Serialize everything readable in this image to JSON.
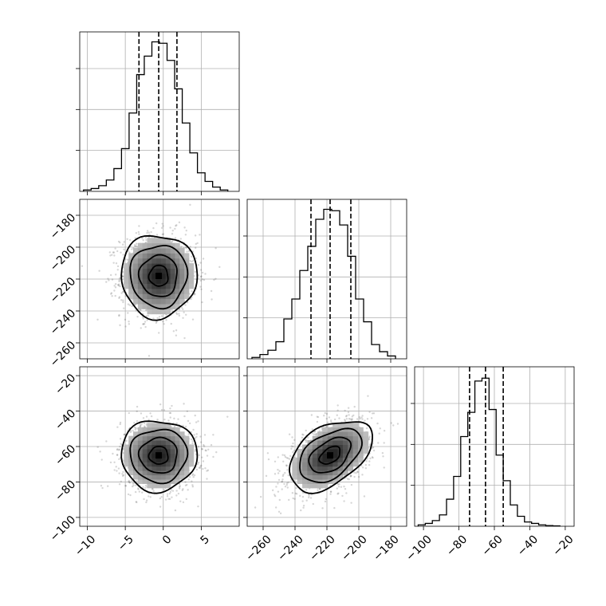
{
  "chart_data": {
    "type": "corner",
    "grid": true,
    "parameters": [
      {
        "range": [
          -11,
          10
        ],
        "ticks": [
          -10,
          -5,
          0,
          5
        ],
        "tick_labels": [
          "−10",
          "−5",
          "0",
          "5"
        ],
        "quantiles": [
          -3.2,
          -0.6,
          1.8
        ],
        "hist_bins": [
          -10.5,
          -9.5,
          -8.5,
          -7.5,
          -6.5,
          -5.5,
          -4.5,
          -3.5,
          -2.5,
          -1.5,
          -0.5,
          0.5,
          1.5,
          2.5,
          3.5,
          4.5,
          5.5,
          6.5,
          7.5,
          8.5
        ],
        "hist_density": [
          0.01,
          0.02,
          0.04,
          0.08,
          0.16,
          0.3,
          0.55,
          0.82,
          0.95,
          1.05,
          1.04,
          0.92,
          0.72,
          0.48,
          0.27,
          0.13,
          0.07,
          0.03,
          0.01
        ]
      },
      {
        "range": [
          -270,
          -170
        ],
        "ticks": [
          -260,
          -240,
          -220,
          -200,
          -180
        ],
        "tick_labels": [
          "−260",
          "−240",
          "−220",
          "−200",
          "−180"
        ],
        "quantiles": [
          -230,
          -218,
          -205
        ],
        "hist_bins": [
          -267,
          -262,
          -257,
          -252,
          -247,
          -242,
          -237,
          -232,
          -227,
          -222,
          -217,
          -212,
          -207,
          -202,
          -197,
          -192,
          -187,
          -182,
          -177
        ],
        "hist_density": [
          0.01,
          0.03,
          0.06,
          0.12,
          0.28,
          0.42,
          0.62,
          0.79,
          0.98,
          1.05,
          1.04,
          0.94,
          0.72,
          0.42,
          0.26,
          0.1,
          0.05,
          0.02
        ]
      },
      {
        "range": [
          -105,
          -15
        ],
        "ticks": [
          -100,
          -80,
          -60,
          -40,
          -20
        ],
        "tick_labels": [
          "−100",
          "−80",
          "−60",
          "−40",
          "−20"
        ],
        "quantiles": [
          -74,
          -65,
          -55
        ],
        "hist_bins": [
          -103,
          -99,
          -95,
          -91,
          -87,
          -83,
          -79,
          -75,
          -71,
          -67,
          -63,
          -59,
          -55,
          -51,
          -47,
          -43,
          -39,
          -35,
          -31,
          -27,
          -23
        ],
        "hist_density": [
          0.01,
          0.02,
          0.04,
          0.08,
          0.19,
          0.35,
          0.63,
          0.8,
          1.02,
          1.04,
          0.82,
          0.5,
          0.32,
          0.15,
          0.07,
          0.03,
          0.02,
          0.01,
          0.005,
          0.003
        ]
      }
    ],
    "pairs": [
      {
        "x": 0,
        "y": 1,
        "center": [
          -0.6,
          -218
        ],
        "sigma": [
          2.5,
          13
        ],
        "rho": 0.0,
        "tilt": 0.0
      },
      {
        "x": 0,
        "y": 2,
        "center": [
          -0.6,
          -65
        ],
        "sigma": [
          2.5,
          10
        ],
        "rho": 0.0,
        "tilt": 0.0
      },
      {
        "x": 1,
        "y": 2,
        "center": [
          -218,
          -65
        ],
        "sigma": [
          13,
          10
        ],
        "rho": 0.45,
        "tilt": 0.4
      }
    ],
    "contour_levels_sigma": [
      0.5,
      1.0,
      1.5,
      2.0
    ]
  }
}
